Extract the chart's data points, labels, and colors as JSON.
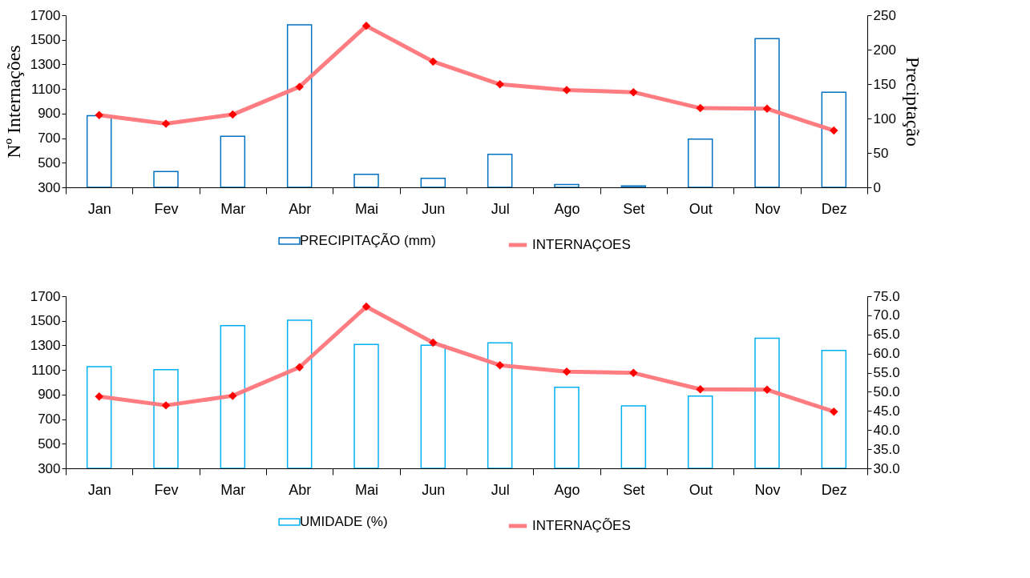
{
  "chart_data": [
    {
      "type": "bar",
      "ylabel": "Nº Internações",
      "y2label": "Preciptação",
      "categories": [
        "Jan",
        "Fev",
        "Mar",
        "Abr",
        "Mai",
        "Jun",
        "Jul",
        "Ago",
        "Set",
        "Out",
        "Nov",
        "Dez"
      ],
      "series": [
        {
          "name": "PRECIPITAÇÃO (mm)",
          "axis": "y2",
          "color": "#0070c0",
          "values": [
            104,
            23,
            74,
            236,
            19,
            13,
            48,
            4,
            2,
            70,
            216,
            138
          ]
        },
        {
          "name": "INTERNAÇOES",
          "type": "line",
          "color": "#ff7c80",
          "values": [
            887,
            818,
            892,
            1118,
            1613,
            1323,
            1138,
            1091,
            1074,
            944,
            939,
            762
          ]
        }
      ],
      "ylim": [
        300,
        1700
      ],
      "yticks": [
        300,
        500,
        700,
        900,
        1100,
        1300,
        1500,
        1700
      ],
      "y2lim": [
        0,
        250
      ],
      "y2ticks": [
        0,
        50,
        100,
        150,
        200,
        250
      ],
      "grid": false,
      "legend": "bottom",
      "marker": "diamond",
      "line_style": "solid"
    },
    {
      "type": "bar",
      "categories": [
        "Jan",
        "Fev",
        "Mar",
        "Abr",
        "Mai",
        "Jun",
        "Jul",
        "Ago",
        "Set",
        "Out",
        "Nov",
        "Dez"
      ],
      "series": [
        {
          "name": "UMIDADE (%)",
          "axis": "y2",
          "color": "#00b0f0",
          "values": [
            56.6,
            55.8,
            67.3,
            68.7,
            62.4,
            62.2,
            62.8,
            51.2,
            46.3,
            48.9,
            64.0,
            60.8
          ]
        },
        {
          "name": "INTERNAÇÕES",
          "type": "line",
          "color": "#ff7c80",
          "values": [
            885,
            812,
            890,
            1122,
            1615,
            1322,
            1139,
            1087,
            1076,
            943,
            939,
            761
          ]
        }
      ],
      "ylim": [
        300,
        1700
      ],
      "yticks": [
        300,
        500,
        700,
        900,
        1100,
        1300,
        1500,
        1700
      ],
      "y2lim": [
        30,
        75
      ],
      "y2ticks": [
        {
          "value": 30,
          "label": "30.0"
        },
        {
          "value": 35,
          "label": "35.0"
        },
        {
          "value": 40,
          "label": "40.0"
        },
        {
          "value": 45,
          "label": "45.0"
        },
        {
          "value": 50,
          "label": "50.0"
        },
        {
          "value": 55,
          "label": "55.0"
        },
        {
          "value": 60,
          "label": "60.0"
        },
        {
          "value": 65,
          "label": "65.0"
        },
        {
          "value": 70,
          "label": "70.0"
        },
        {
          "value": 75,
          "label": "75.0"
        }
      ],
      "grid": false,
      "legend": "bottom",
      "marker": "diamond",
      "line_style": "solid"
    }
  ]
}
